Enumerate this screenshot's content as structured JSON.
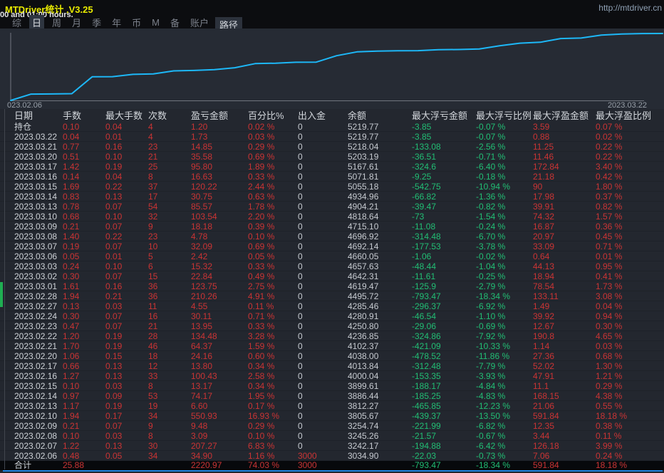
{
  "window": {
    "title": "MTDriver统计 ,V3.25",
    "subtitle": "00 and 01:00 hours.",
    "url": "http://mtdriver.cn"
  },
  "menu": {
    "tabs": [
      "综",
      "日",
      "周",
      "月",
      "季",
      "年",
      "币",
      "M",
      "备",
      "账户"
    ],
    "active_tab": "日",
    "path_button": "路径"
  },
  "chart_data": {
    "type": "line",
    "title": "",
    "xlabel": "",
    "ylabel": "",
    "x_start_label": "023.02.06",
    "x_end_label": "2023.03.22",
    "x": [
      "2023.02.06",
      "2023.02.07",
      "2023.02.08",
      "2023.02.09",
      "2023.02.10",
      "2023.02.13",
      "2023.02.14",
      "2023.02.15",
      "2023.02.16",
      "2023.02.17",
      "2023.02.20",
      "2023.02.21",
      "2023.02.22",
      "2023.02.23",
      "2023.02.24",
      "2023.02.27",
      "2023.02.28",
      "2023.03.01",
      "2023.03.02",
      "2023.03.03",
      "2023.03.06",
      "2023.03.07",
      "2023.03.08",
      "2023.03.09",
      "2023.03.10",
      "2023.03.13",
      "2023.03.14",
      "2023.03.15",
      "2023.03.16",
      "2023.03.17",
      "2023.03.20",
      "2023.03.21",
      "2023.03.22"
    ],
    "series": [
      {
        "name": "余额",
        "values": [
          3034.9,
          3242.17,
          3245.26,
          3254.74,
          3805.67,
          3812.27,
          3886.44,
          3899.61,
          4000.04,
          4013.84,
          4038.0,
          4102.37,
          4236.85,
          4250.8,
          4280.91,
          4285.46,
          4495.72,
          4619.47,
          4642.31,
          4657.63,
          4660.05,
          4692.14,
          4696.92,
          4715.1,
          4818.64,
          4904.21,
          4934.96,
          5055.18,
          5071.81,
          5167.61,
          5203.19,
          5218.04,
          5219.77
        ]
      }
    ],
    "ylim": [
      3034.9,
      5219.77
    ],
    "grid": false,
    "legend_position": "none",
    "line_color": "#1db8f8",
    "axis_color": "#71767f",
    "label_color": "#99a0a9"
  },
  "table": {
    "headers": [
      "日期",
      "手数",
      "最大手数",
      "次数",
      "盈亏金额",
      "百分比%",
      "出入金",
      "余额",
      "最大浮亏金额",
      "最大浮亏比例",
      "最大浮盈金额",
      "最大浮盈比例"
    ],
    "rows": [
      [
        "持仓",
        "0.10",
        "0.04",
        "4",
        "1.20",
        "0.02 %",
        "0",
        "5219.77",
        "-3.85",
        "-0.07 %",
        "3.59",
        "0.07 %"
      ],
      [
        "2023.03.22",
        "0.04",
        "0.01",
        "4",
        "1.73",
        "0.03 %",
        "0",
        "5219.77",
        "-3.85",
        "-0.07 %",
        "0.88",
        "0.02 %"
      ],
      [
        "2023.03.21",
        "0.77",
        "0.16",
        "23",
        "14.85",
        "0.29 %",
        "0",
        "5218.04",
        "-133.08",
        "-2.56 %",
        "11.25",
        "0.22 %"
      ],
      [
        "2023.03.20",
        "0.51",
        "0.10",
        "21",
        "35.58",
        "0.69 %",
        "0",
        "5203.19",
        "-36.51",
        "-0.71 %",
        "11.46",
        "0.22 %"
      ],
      [
        "2023.03.17",
        "1.42",
        "0.19",
        "25",
        "95.80",
        "1.89 %",
        "0",
        "5167.61",
        "-324.6",
        "-6.40 %",
        "172.84",
        "3.40 %"
      ],
      [
        "2023.03.16",
        "0.14",
        "0.04",
        "8",
        "16.63",
        "0.33 %",
        "0",
        "5071.81",
        "-9.25",
        "-0.18 %",
        "21.18",
        "0.42 %"
      ],
      [
        "2023.03.15",
        "1.69",
        "0.22",
        "37",
        "120.22",
        "2.44 %",
        "0",
        "5055.18",
        "-542.75",
        "-10.94 %",
        "90",
        "1.80 %"
      ],
      [
        "2023.03.14",
        "0.83",
        "0.13",
        "17",
        "30.75",
        "0.63 %",
        "0",
        "4934.96",
        "-66.82",
        "-1.36 %",
        "17.98",
        "0.37 %"
      ],
      [
        "2023.03.13",
        "0.78",
        "0.07",
        "54",
        "85.57",
        "1.78 %",
        "0",
        "4904.21",
        "-39.47",
        "-0.82 %",
        "39.91",
        "0.82 %"
      ],
      [
        "2023.03.10",
        "0.68",
        "0.10",
        "32",
        "103.54",
        "2.20 %",
        "0",
        "4818.64",
        "-73",
        "-1.54 %",
        "74.32",
        "1.57 %"
      ],
      [
        "2023.03.09",
        "0.21",
        "0.07",
        "9",
        "18.18",
        "0.39 %",
        "0",
        "4715.10",
        "-11.08",
        "-0.24 %",
        "16.87",
        "0.36 %"
      ],
      [
        "2023.03.08",
        "1.40",
        "0.22",
        "23",
        "4.78",
        "0.10 %",
        "0",
        "4696.92",
        "-314.48",
        "-6.70 %",
        "20.97",
        "0.45 %"
      ],
      [
        "2023.03.07",
        "0.19",
        "0.07",
        "10",
        "32.09",
        "0.69 %",
        "0",
        "4692.14",
        "-177.53",
        "-3.78 %",
        "33.09",
        "0.71 %"
      ],
      [
        "2023.03.06",
        "0.05",
        "0.01",
        "5",
        "2.42",
        "0.05 %",
        "0",
        "4660.05",
        "-1.06",
        "-0.02 %",
        "0.64",
        "0.01 %"
      ],
      [
        "2023.03.03",
        "0.24",
        "0.10",
        "6",
        "15.32",
        "0.33 %",
        "0",
        "4657.63",
        "-48.44",
        "-1.04 %",
        "44.13",
        "0.95 %"
      ],
      [
        "2023.03.02",
        "0.30",
        "0.07",
        "15",
        "22.84",
        "0.49 %",
        "0",
        "4642.31",
        "-11.61",
        "-0.25 %",
        "18.94",
        "0.41 %"
      ],
      [
        "2023.03.01",
        "1.61",
        "0.16",
        "36",
        "123.75",
        "2.75 %",
        "0",
        "4619.47",
        "-125.9",
        "-2.79 %",
        "78.54",
        "1.73 %"
      ],
      [
        "2023.02.28",
        "1.94",
        "0.21",
        "36",
        "210.26",
        "4.91 %",
        "0",
        "4495.72",
        "-793.47",
        "-18.34 %",
        "133.11",
        "3.08 %"
      ],
      [
        "2023.02.27",
        "0.13",
        "0.03",
        "11",
        "4.55",
        "0.11 %",
        "0",
        "4285.46",
        "-296.37",
        "-6.92 %",
        "1.49",
        "0.04 %"
      ],
      [
        "2023.02.24",
        "0.30",
        "0.07",
        "16",
        "30.11",
        "0.71 %",
        "0",
        "4280.91",
        "-46.54",
        "-1.10 %",
        "39.92",
        "0.94 %"
      ],
      [
        "2023.02.23",
        "0.47",
        "0.07",
        "21",
        "13.95",
        "0.33 %",
        "0",
        "4250.80",
        "-29.06",
        "-0.69 %",
        "12.67",
        "0.30 %"
      ],
      [
        "2023.02.22",
        "1.20",
        "0.19",
        "28",
        "134.48",
        "3.28 %",
        "0",
        "4236.85",
        "-324.86",
        "-7.92 %",
        "190.8",
        "4.65 %"
      ],
      [
        "2023.02.21",
        "1.70",
        "0.19",
        "46",
        "64.37",
        "1.59 %",
        "0",
        "4102.37",
        "-421.09",
        "-10.33 %",
        "1.14",
        "0.03 %"
      ],
      [
        "2023.02.20",
        "1.06",
        "0.15",
        "18",
        "24.16",
        "0.60 %",
        "0",
        "4038.00",
        "-478.52",
        "-11.86 %",
        "27.36",
        "0.68 %"
      ],
      [
        "2023.02.17",
        "0.66",
        "0.13",
        "12",
        "13.80",
        "0.34 %",
        "0",
        "4013.84",
        "-312.48",
        "-7.79 %",
        "52.02",
        "1.30 %"
      ],
      [
        "2023.02.16",
        "1.27",
        "0.13",
        "33",
        "100.43",
        "2.58 %",
        "0",
        "4000.04",
        "-153.35",
        "-3.93 %",
        "47.91",
        "1.21 %"
      ],
      [
        "2023.02.15",
        "0.10",
        "0.03",
        "8",
        "13.17",
        "0.34 %",
        "0",
        "3899.61",
        "-188.17",
        "-4.84 %",
        "11.1",
        "0.29 %"
      ],
      [
        "2023.02.14",
        "0.97",
        "0.09",
        "53",
        "74.17",
        "1.95 %",
        "0",
        "3886.44",
        "-185.25",
        "-4.83 %",
        "168.15",
        "4.38 %"
      ],
      [
        "2023.02.13",
        "1.17",
        "0.19",
        "19",
        "6.60",
        "0.17 %",
        "0",
        "3812.27",
        "-465.85",
        "-12.23 %",
        "21.06",
        "0.55 %"
      ],
      [
        "2023.02.10",
        "1.94",
        "0.17",
        "34",
        "550.93",
        "16.93 %",
        "0",
        "3805.67",
        "-439.37",
        "-13.50 %",
        "591.84",
        "18.18 %"
      ],
      [
        "2023.02.09",
        "0.21",
        "0.07",
        "9",
        "9.48",
        "0.29 %",
        "0",
        "3254.74",
        "-221.99",
        "-6.82 %",
        "12.35",
        "0.38 %"
      ],
      [
        "2023.02.08",
        "0.10",
        "0.03",
        "8",
        "3.09",
        "0.10 %",
        "0",
        "3245.26",
        "-21.57",
        "-0.67 %",
        "3.44",
        "0.11 %"
      ],
      [
        "2023.02.07",
        "1.22",
        "0.13",
        "30",
        "207.27",
        "6.83 %",
        "0",
        "3242.17",
        "-194.88",
        "-6.42 %",
        "126.18",
        "3.99 %"
      ],
      [
        "2023.02.06",
        "0.48",
        "0.05",
        "34",
        "34.90",
        "1.16 %",
        "3000",
        "3034.90",
        "-22.03",
        "-0.73 %",
        "7.06",
        "0.24 %"
      ]
    ],
    "total": [
      "合计",
      "25.88",
      "",
      "",
      "2220.97",
      "74.03 %",
      "3000",
      "",
      "-793.47",
      "-18.34 %",
      "591.84",
      "18.18 %"
    ]
  },
  "colors": {
    "profit_red": "#cb3434",
    "loss_green": "#21bf74",
    "title_yellow": "#e8ea00",
    "line_cyan": "#1db8f8",
    "bottom_border_blue": "#2285e0",
    "scroll_green": "#1fae52"
  }
}
